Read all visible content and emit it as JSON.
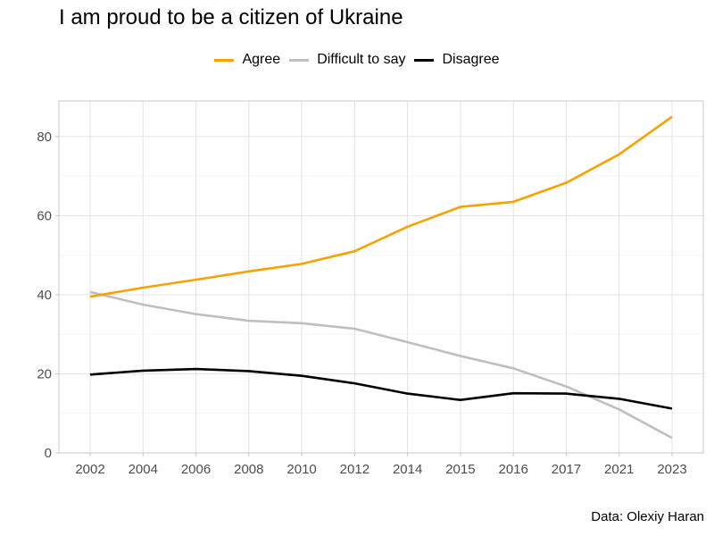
{
  "chart_data": {
    "type": "line",
    "title": "I am proud to be a citizen of Ukraine",
    "caption": "Data: Olexiy Haran",
    "x": [
      "2002",
      "2004",
      "2006",
      "2008",
      "2010",
      "2012",
      "2014",
      "2015",
      "2016",
      "2017",
      "2021",
      "2023"
    ],
    "series": [
      {
        "name": "Agree",
        "color": "#f5a300",
        "values": [
          39.5,
          41.8,
          43.8,
          45.9,
          47.8,
          51,
          57.2,
          62.2,
          63.5,
          68.3,
          75.5,
          85
        ]
      },
      {
        "name": "Difficult to say",
        "color": "#bfbfbf",
        "values": [
          40.7,
          37.5,
          35.1,
          33.4,
          32.8,
          31.4,
          28,
          24.5,
          21.4,
          16.8,
          11,
          3.8
        ]
      },
      {
        "name": "Disagree",
        "color": "#000000",
        "values": [
          19.8,
          20.8,
          21.2,
          20.7,
          19.5,
          17.6,
          15,
          13.4,
          15.1,
          15,
          13.7,
          11.2
        ]
      }
    ],
    "ylim": [
      0,
      89
    ],
    "yticks": [
      0,
      20,
      40,
      60,
      80
    ],
    "xlabel": "",
    "ylabel": "",
    "grid": true,
    "legend_position": "top"
  }
}
